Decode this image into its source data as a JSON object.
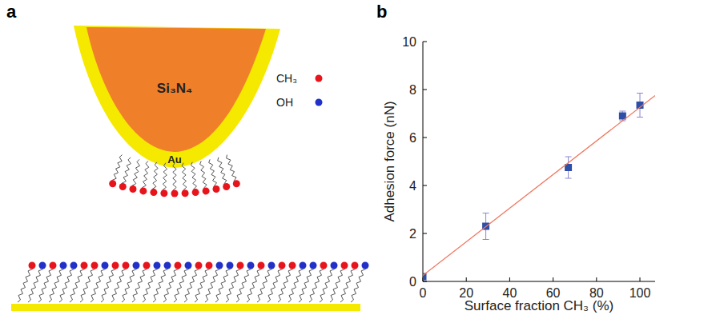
{
  "diagram": {
    "panel_label": "a",
    "tip_material": "Si₃N₄",
    "tip_color": "#f07f2a",
    "coating": "Au",
    "coating_color": "#f5e900",
    "legend": [
      {
        "label": "CH₃",
        "color": "#e8141c"
      },
      {
        "label": "OH",
        "color": "#2030c8"
      }
    ]
  },
  "chart_data": {
    "type": "scatter",
    "panel_label": "b",
    "x_label": "Surface fraction CH₃ (%)",
    "y_label": "Adhesion force (nN)",
    "xlim": [
      0,
      107
    ],
    "xticks": [
      0,
      20,
      40,
      60,
      80,
      100
    ],
    "ylim": [
      0,
      10
    ],
    "yticks": [
      0,
      2,
      4,
      6,
      8,
      10
    ],
    "grid": false,
    "series": [
      {
        "type": "scatter",
        "marker": "square",
        "color": "#2e4fa8",
        "x": [
          0,
          29,
          67,
          92,
          100
        ],
        "values": [
          0.2,
          2.3,
          4.75,
          6.9,
          7.35
        ],
        "error": [
          0.1,
          0.55,
          0.45,
          0.2,
          0.5
        ]
      },
      {
        "type": "line",
        "line_style": "solid",
        "color": "#f07860",
        "x": [
          0,
          107
        ],
        "values": [
          0.25,
          7.75
        ]
      }
    ]
  }
}
